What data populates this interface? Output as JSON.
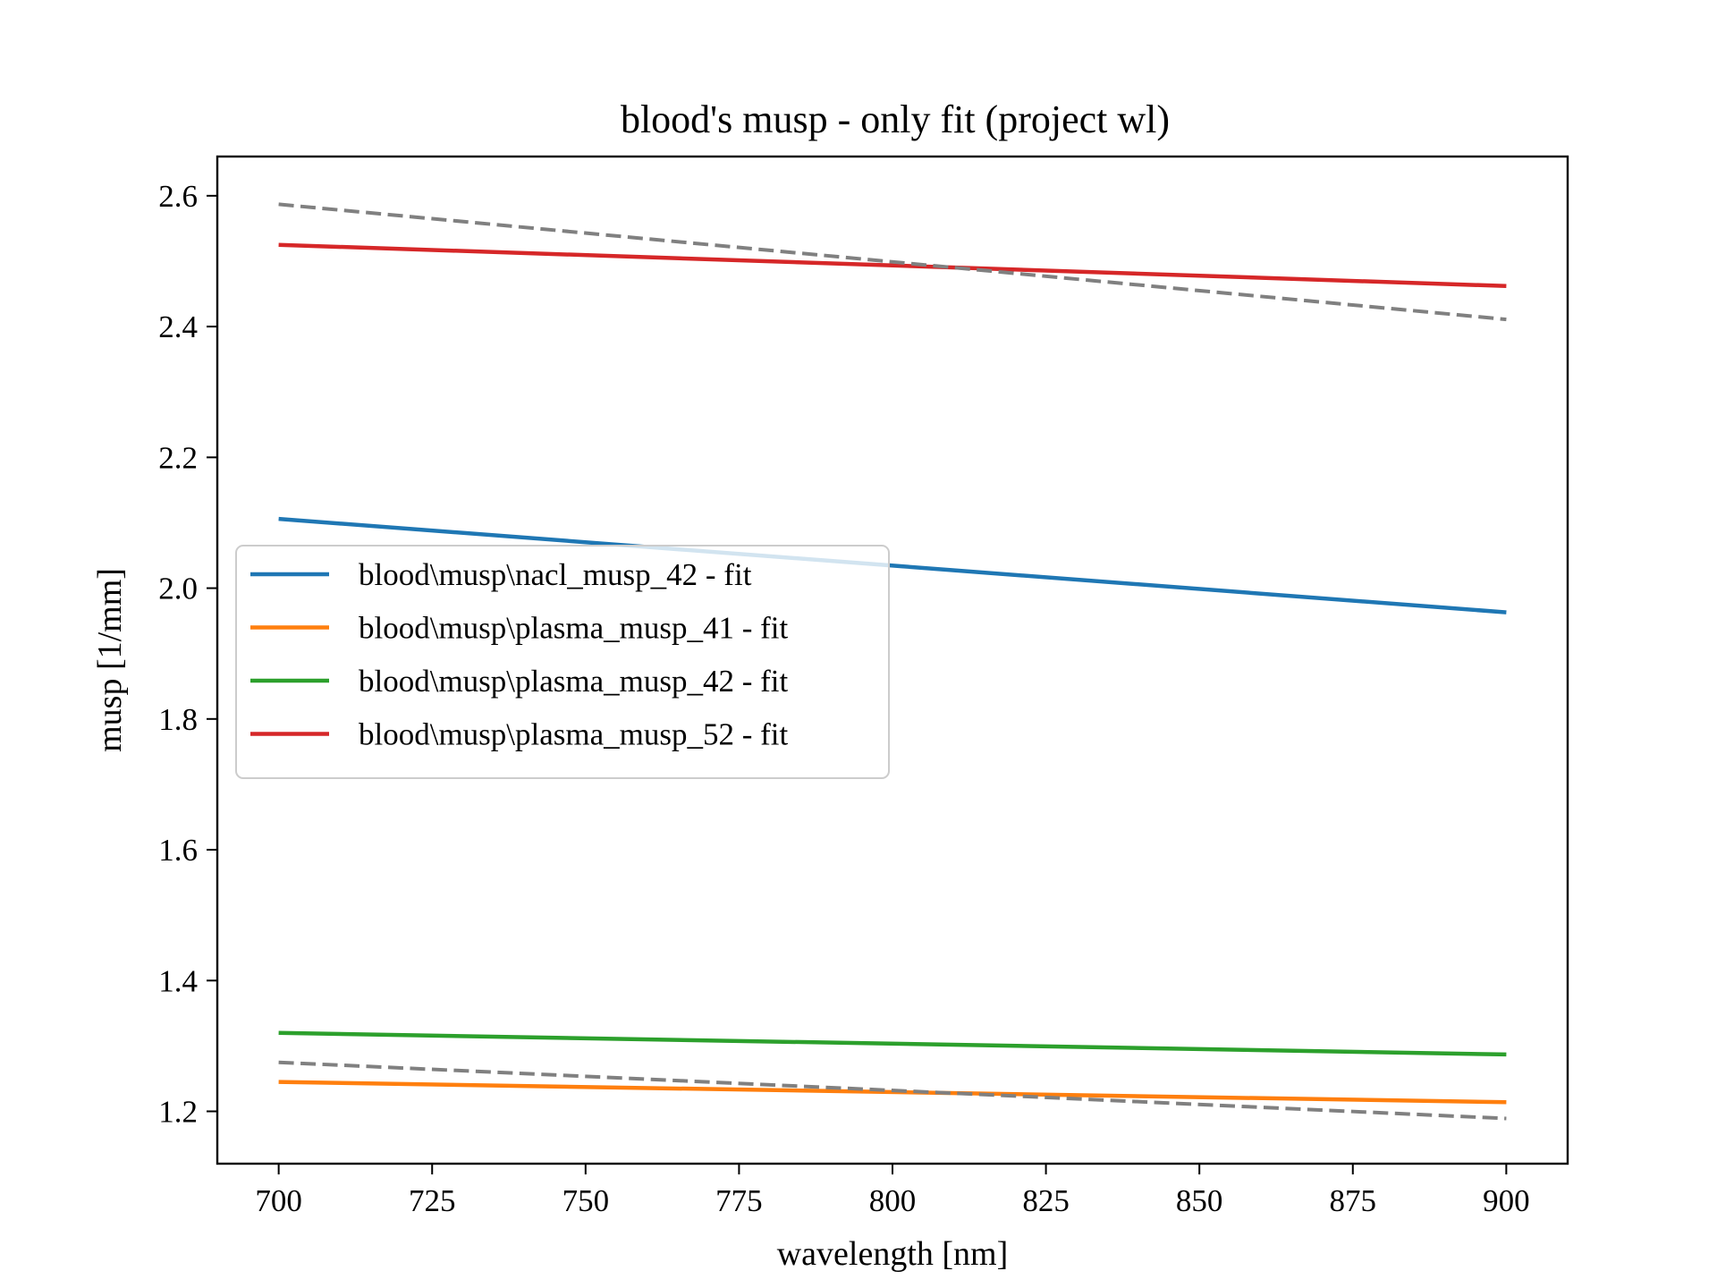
{
  "chart_data": {
    "type": "line",
    "title": "blood's musp - only fit (project wl)",
    "xlabel": "wavelength [nm]",
    "ylabel": "musp [1/mm]",
    "xlim": [
      690,
      910
    ],
    "ylim": [
      1.12,
      2.66
    ],
    "xticks": [
      "700",
      "725",
      "750",
      "775",
      "800",
      "825",
      "850",
      "875",
      "900"
    ],
    "yticks": [
      "1.2",
      "1.4",
      "1.6",
      "1.8",
      "2.0",
      "2.2",
      "2.4",
      "2.6"
    ],
    "grid": false,
    "legend_position": "center-left",
    "series": [
      {
        "name": "blood\\musp\\nacl_musp_42 - fit",
        "color": "#1f77b4",
        "style": "solid",
        "x": [
          700,
          900
        ],
        "y": [
          2.106,
          1.963
        ]
      },
      {
        "name": "blood\\musp\\plasma_musp_41 - fit",
        "color": "#ff7f0e",
        "style": "solid",
        "x": [
          700,
          900
        ],
        "y": [
          1.245,
          1.214
        ]
      },
      {
        "name": "blood\\musp\\plasma_musp_42 - fit",
        "color": "#2ca02c",
        "style": "solid",
        "x": [
          700,
          900
        ],
        "y": [
          1.32,
          1.287
        ]
      },
      {
        "name": "blood\\musp\\plasma_musp_52 - fit",
        "color": "#d62728",
        "style": "solid",
        "x": [
          700,
          900
        ],
        "y": [
          2.525,
          2.462
        ]
      },
      {
        "color": "#808080",
        "style": "dashed",
        "x": [
          700,
          900
        ],
        "y": [
          2.587,
          2.411
        ]
      },
      {
        "color": "#808080",
        "style": "dashed",
        "x": [
          700,
          900
        ],
        "y": [
          1.275,
          1.189
        ]
      }
    ]
  }
}
